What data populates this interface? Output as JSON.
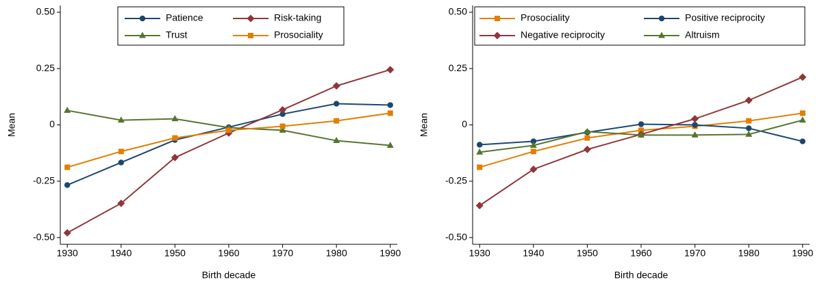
{
  "chart_data": [
    {
      "type": "line",
      "xlabel": "Birth decade",
      "ylabel": "Mean",
      "x": [
        1930,
        1940,
        1950,
        1960,
        1970,
        1980,
        1990
      ],
      "xlim": [
        1928.7,
        1991.3
      ],
      "xticks": [
        1930,
        1940,
        1950,
        1960,
        1970,
        1980,
        1990
      ],
      "ylim": [
        -0.53,
        0.53
      ],
      "yticks": [
        {
          "value": -0.5,
          "label": "-0.50"
        },
        {
          "value": -0.25,
          "label": "-0.25"
        },
        0,
        {
          "value": 0.25,
          "label": "0.25"
        },
        {
          "value": 0.5,
          "label": "0.50"
        }
      ],
      "series": [
        {
          "name": "Patience",
          "color": "#1a476f",
          "marker": "circle",
          "values": [
            -0.267,
            -0.167,
            -0.067,
            -0.01,
            0.048,
            0.094,
            0.088
          ]
        },
        {
          "name": "Risk-taking",
          "color": "#90353b",
          "marker": "diamond",
          "values": [
            -0.479,
            -0.348,
            -0.145,
            -0.036,
            0.067,
            0.173,
            0.245
          ]
        },
        {
          "name": "Trust",
          "color": "#55752f",
          "marker": "triangle",
          "values": [
            0.064,
            0.021,
            0.027,
            -0.012,
            -0.024,
            -0.07,
            -0.091
          ]
        },
        {
          "name": "Prosociality",
          "color": "#e37e00",
          "marker": "square",
          "values": [
            -0.188,
            -0.118,
            -0.058,
            -0.024,
            -0.006,
            0.018,
            0.052
          ]
        }
      ]
    },
    {
      "type": "line",
      "xlabel": "Birth decade",
      "ylabel": "Mean",
      "x": [
        1930,
        1940,
        1950,
        1960,
        1970,
        1980,
        1990
      ],
      "xlim": [
        1928.7,
        1991.3
      ],
      "xticks": [
        1930,
        1940,
        1950,
        1960,
        1970,
        1980,
        1990
      ],
      "ylim": [
        -0.53,
        0.53
      ],
      "yticks": [
        {
          "value": -0.5,
          "label": "-0.50"
        },
        {
          "value": -0.25,
          "label": "-0.25"
        },
        0,
        {
          "value": 0.25,
          "label": "0.25"
        },
        {
          "value": 0.5,
          "label": "0.50"
        }
      ],
      "series": [
        {
          "name": "Prosociality",
          "color": "#e37e00",
          "marker": "square",
          "values": [
            -0.188,
            -0.118,
            -0.058,
            -0.024,
            -0.006,
            0.018,
            0.052
          ]
        },
        {
          "name": "Positive reciprocity",
          "color": "#1a476f",
          "marker": "circle",
          "values": [
            -0.088,
            -0.073,
            -0.033,
            0.003,
            0.0,
            -0.015,
            -0.073
          ]
        },
        {
          "name": "Negative reciprocity",
          "color": "#90353b",
          "marker": "diamond",
          "values": [
            -0.358,
            -0.197,
            -0.109,
            -0.042,
            0.027,
            0.109,
            0.212
          ]
        },
        {
          "name": "Altruism",
          "color": "#55752f",
          "marker": "triangle",
          "values": [
            -0.121,
            -0.091,
            -0.03,
            -0.045,
            -0.045,
            -0.042,
            0.021
          ]
        }
      ]
    }
  ]
}
